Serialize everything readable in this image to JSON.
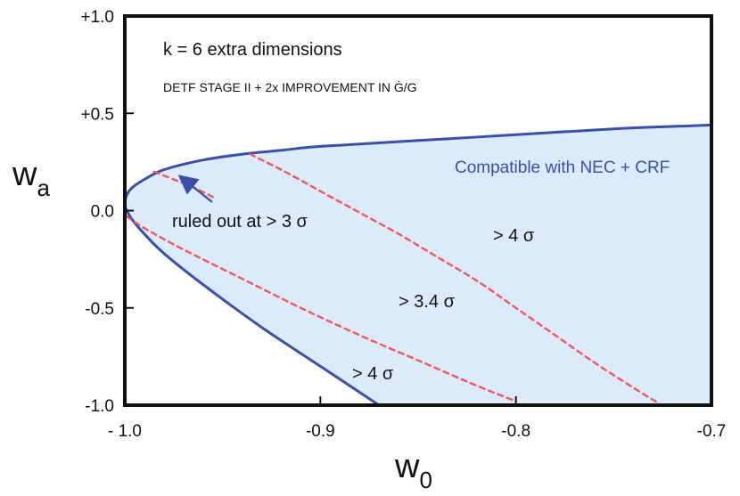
{
  "chart_data": {
    "type": "line",
    "title": "k = 6 extra dimensions",
    "subtitle_prefix": "DETF STAGE II + 2x IMPROVEMENT IN ",
    "subtitle_math": "Ġ/G",
    "xlabel": "w",
    "xlabel_sub": "0",
    "ylabel": "w",
    "ylabel_sub": "a",
    "xlim": [
      -1.0,
      -0.7
    ],
    "ylim": [
      -1.0,
      1.0
    ],
    "x_ticks": [
      -1.0,
      -0.9,
      -0.8,
      -0.7
    ],
    "x_tick_labels": [
      "- 1.0",
      "-0.9",
      "-0.8",
      "-0.7"
    ],
    "y_ticks": [
      1.0,
      0.5,
      0.0,
      -0.5,
      -1.0
    ],
    "y_tick_labels": [
      "+1.0",
      "+0.5",
      "0.0",
      "-0.5",
      "-1.0"
    ],
    "colors": {
      "boundary": "#3a4fa8",
      "fill": "#dcebfb",
      "dashed": "#f0585a",
      "region_text": "#3a4fa8",
      "arrow": "#3a4fa8"
    },
    "series": [
      {
        "name": "NEC + CRF boundary",
        "style": "solid",
        "x": [
          -0.87,
          -0.9,
          -0.93,
          -0.96,
          -0.98,
          -0.99,
          -0.996,
          -0.999,
          -1.0,
          -0.999,
          -0.996,
          -0.99,
          -0.98,
          -0.96,
          -0.94,
          -0.92,
          -0.9,
          -0.85,
          -0.8,
          -0.75,
          -0.7
        ],
        "y": [
          -1.0,
          -0.8,
          -0.6,
          -0.38,
          -0.22,
          -0.12,
          -0.05,
          0.0,
          0.03,
          0.08,
          0.12,
          0.16,
          0.21,
          0.26,
          0.29,
          0.31,
          0.33,
          0.36,
          0.39,
          0.42,
          0.44
        ]
      },
      {
        "name": "> 3 sigma contour",
        "style": "dashed",
        "x": [
          -0.999,
          -0.99,
          -0.97,
          -0.94,
          -0.91,
          -0.88,
          -0.85,
          -0.82,
          -0.8
        ],
        "y": [
          -0.03,
          -0.09,
          -0.2,
          -0.35,
          -0.5,
          -0.64,
          -0.77,
          -0.9,
          -0.98
        ]
      },
      {
        "name": "> 4 sigma contour",
        "style": "dashed",
        "x": [
          -0.985,
          -0.975,
          -0.965,
          -0.955
        ],
        "y": [
          0.2,
          0.16,
          0.12,
          0.07
        ]
      },
      {
        "name": "> 4 sigma contour (upper)",
        "style": "dashed",
        "x": [
          -0.936,
          -0.92,
          -0.9,
          -0.88,
          -0.86,
          -0.84,
          -0.82,
          -0.8,
          -0.78,
          -0.76,
          -0.74,
          -0.727
        ],
        "y": [
          0.29,
          0.21,
          0.1,
          -0.01,
          -0.12,
          -0.24,
          -0.36,
          -0.5,
          -0.64,
          -0.78,
          -0.91,
          -0.99
        ]
      }
    ],
    "annotations": {
      "compatible": "Compatible with NEC + CRF",
      "ruled_out": "ruled out at > 3 σ",
      "sigma4_upper": "> 4 σ",
      "sigma34": "> 3.4 σ",
      "sigma4_lower": "> 4 σ"
    }
  }
}
